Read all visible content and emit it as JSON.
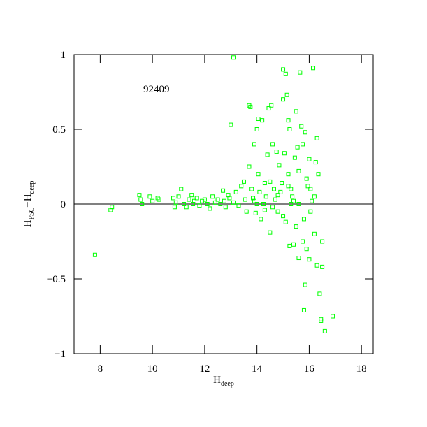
{
  "chart_data": {
    "type": "scatter",
    "annotation": "92409",
    "annotation_x": 9.65,
    "annotation_y": 0.77,
    "xlabel_parts": [
      "H",
      "deep"
    ],
    "ylabel_parts": [
      "H",
      "PSC",
      "−H",
      "deep"
    ],
    "color": "#00ff00",
    "hline": 0,
    "xlim": [
      7,
      18.45
    ],
    "ylim": [
      -1,
      1
    ],
    "xticks": [
      8,
      10,
      12,
      14,
      16,
      18
    ],
    "yticks": [
      {
        "value": -1,
        "label": "−1"
      },
      {
        "value": -0.5,
        "label": "−0.5"
      },
      0,
      0.5,
      1
    ],
    "x": [
      7.8,
      8.4,
      8.45,
      9.5,
      9.55,
      9.6,
      9.9,
      10.0,
      10.2,
      10.25,
      10.8,
      10.85,
      10.9,
      11.0,
      11.1,
      11.2,
      11.3,
      11.4,
      11.5,
      11.55,
      11.6,
      11.7,
      11.8,
      11.9,
      12.0,
      12.1,
      12.2,
      12.3,
      12.4,
      12.5,
      12.6,
      12.7,
      12.75,
      12.8,
      12.9,
      12.95,
      13.0,
      13.1,
      13.1,
      13.2,
      13.3,
      13.4,
      13.5,
      13.55,
      13.6,
      13.7,
      13.7,
      13.75,
      13.8,
      13.85,
      13.9,
      13.95,
      14.0,
      14.05,
      14.05,
      14.1,
      14.15,
      14.2,
      14.25,
      14.3,
      14.35,
      14.4,
      14.45,
      14.5,
      14.5,
      14.55,
      14.6,
      14.65,
      14.7,
      14.75,
      14.8,
      14.85,
      14.9,
      14.95,
      15.0,
      15.0,
      15.05,
      15.1,
      15.1,
      15.15,
      15.2,
      15.2,
      15.25,
      15.25,
      15.3,
      15.35,
      15.4,
      15.45,
      15.5,
      15.5,
      15.55,
      15.6,
      15.6,
      15.65,
      15.7,
      15.75,
      15.75,
      15.8,
      15.85,
      15.85,
      15.9,
      15.9,
      15.95,
      16.0,
      16.0,
      16.05,
      16.1,
      16.15,
      16.2,
      16.25,
      16.3,
      16.3,
      16.35,
      16.4,
      16.45,
      16.45,
      16.5,
      16.5,
      16.6,
      16.9,
      15.3,
      15.4,
      14.6,
      14.0,
      15.0,
      16.05,
      15.8,
      15.2,
      14.8,
      16.2,
      15.6,
      13.9,
      14.3
    ],
    "values": [
      -0.34,
      -0.04,
      -0.02,
      0.06,
      0.03,
      0.0,
      0.05,
      0.02,
      0.04,
      0.03,
      0.04,
      -0.02,
      0.01,
      0.05,
      0.1,
      0.0,
      -0.02,
      0.03,
      0.06,
      0.0,
      0.02,
      0.04,
      -0.01,
      0.02,
      0.03,
      0.0,
      -0.03,
      0.05,
      0.01,
      0.03,
      0.0,
      0.09,
      0.02,
      -0.02,
      0.06,
      0.04,
      0.53,
      0.98,
      0.01,
      0.08,
      -0.01,
      0.12,
      0.15,
      0.03,
      -0.05,
      0.25,
      0.66,
      0.65,
      0.1,
      0.04,
      0.4,
      -0.06,
      0.5,
      0.57,
      0.2,
      0.08,
      -0.1,
      0.56,
      0.0,
      0.14,
      0.05,
      0.33,
      0.64,
      -0.19,
      0.15,
      0.66,
      0.4,
      0.1,
      0.03,
      0.35,
      -0.05,
      0.26,
      0.08,
      0.14,
      0.7,
      0.9,
      0.34,
      0.87,
      -0.12,
      0.73,
      0.56,
      0.2,
      0.5,
      -0.28,
      0.1,
      0.05,
      -0.27,
      0.31,
      0.62,
      -0.15,
      0.38,
      0.22,
      -0.36,
      0.88,
      0.52,
      0.4,
      -0.25,
      -0.71,
      -0.54,
      0.48,
      0.17,
      -0.3,
      0.12,
      -0.37,
      0.3,
      -0.05,
      0.02,
      0.91,
      -0.2,
      0.28,
      0.44,
      -0.41,
      0.2,
      -0.6,
      -0.78,
      -0.77,
      -0.25,
      -0.42,
      -0.85,
      -0.75,
      0.0,
      0.02,
      -0.02,
      0.0,
      -0.08,
      0.1,
      -0.1,
      0.12,
      0.06,
      0.05,
      0.0,
      0.02,
      -0.04
    ]
  }
}
